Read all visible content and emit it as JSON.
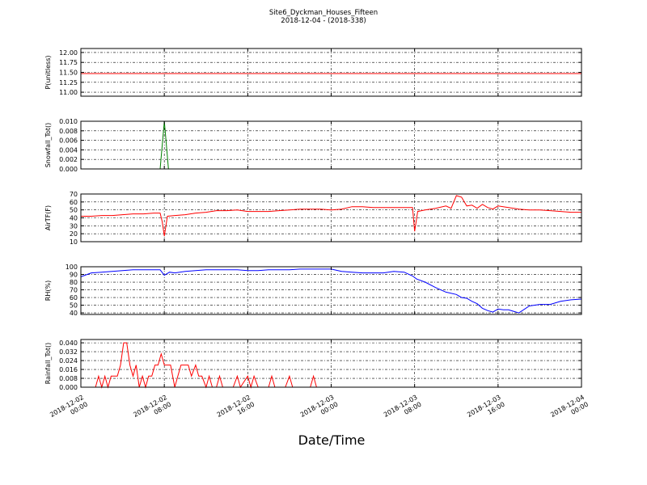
{
  "figure": {
    "title": "Site6_Dyckman_Houses_Fifteen",
    "subtitle": "2018-12-04 - (2018-338)",
    "xlabel": "Date/Time",
    "x_ticks": [
      "2018-12-02\n00:00",
      "2018-12-02\n08:00",
      "2018-12-02\n16:00",
      "2018-12-03\n00:00",
      "2018-12-03\n08:00",
      "2018-12-03\n16:00",
      "2018-12-04\n00:00"
    ]
  },
  "chart_data": [
    {
      "type": "line",
      "ylabel": "P(unitless)",
      "ylim": [
        10.9,
        12.1
      ],
      "yticks": [
        "12.00",
        "11.75",
        "11.50",
        "11.25",
        "11.00"
      ],
      "ytick_values": [
        12.0,
        11.75,
        11.5,
        11.25,
        11.0
      ],
      "color": "#ff0000",
      "grid": true,
      "x_hours": [
        0,
        48
      ],
      "values": [
        11.47,
        11.47
      ]
    },
    {
      "type": "line",
      "ylabel": "Snowfall_Tot()",
      "ylim": [
        0,
        0.01
      ],
      "yticks": [
        "0.010",
        "0.008",
        "0.006",
        "0.004",
        "0.002",
        "0.000"
      ],
      "ytick_values": [
        0.01,
        0.008,
        0.006,
        0.004,
        0.002,
        0.0
      ],
      "color": "#008000",
      "grid": true,
      "x_hours": [
        0,
        7.6,
        8.0,
        8.4,
        48
      ],
      "values": [
        0,
        0,
        0.01,
        0,
        0
      ]
    },
    {
      "type": "line",
      "ylabel": "AirTF(F)",
      "ylim": [
        10,
        70
      ],
      "yticks": [
        "70",
        "60",
        "50",
        "40",
        "30",
        "20",
        "10"
      ],
      "ytick_values": [
        70,
        60,
        50,
        40,
        30,
        20,
        10
      ],
      "color": "#ff0000",
      "grid": true,
      "x_hours": [
        0,
        1,
        2,
        3,
        4,
        5,
        6,
        7,
        7.6,
        7.8,
        8.0,
        8.3,
        9,
        10,
        11,
        12,
        13,
        14,
        15,
        16,
        17,
        18,
        19,
        20,
        21,
        22,
        23,
        24,
        25,
        26,
        27,
        28,
        29,
        30,
        31,
        31.8,
        32.0,
        32.3,
        33,
        34,
        35,
        35.5,
        36,
        36.5,
        37,
        37.5,
        38,
        38.5,
        39,
        39.5,
        40,
        41,
        42,
        43,
        44,
        45,
        46,
        47,
        48
      ],
      "values": [
        42,
        42,
        43,
        43,
        44,
        45,
        45,
        46,
        46,
        35,
        17,
        42,
        43,
        44,
        46,
        47,
        49,
        49,
        50,
        48,
        48,
        48,
        49,
        50,
        51,
        51,
        51,
        50,
        51,
        54,
        54,
        53,
        53,
        53,
        53,
        53,
        23,
        48,
        50,
        52,
        55,
        52,
        68,
        66,
        55,
        56,
        52,
        57,
        53,
        51,
        55,
        53,
        51,
        50,
        50,
        49,
        48,
        47,
        47
      ]
    },
    {
      "type": "line",
      "ylabel": "RH(%)",
      "ylim": [
        38,
        100
      ],
      "yticks": [
        "100",
        "90",
        "80",
        "70",
        "60",
        "50",
        "40"
      ],
      "ytick_values": [
        100,
        90,
        80,
        70,
        60,
        50,
        40
      ],
      "color": "#0000ff",
      "grid": true,
      "x_hours": [
        0,
        1,
        2,
        3,
        4,
        5,
        6,
        7,
        7.6,
        8.0,
        8.5,
        9,
        10,
        11,
        12,
        13,
        14,
        15,
        16,
        17,
        18,
        19,
        20,
        21,
        22,
        23,
        24,
        25,
        26,
        27,
        28,
        29,
        30,
        31,
        31.8,
        32.2,
        33,
        34,
        35,
        36,
        36.5,
        37,
        37.5,
        38,
        38.5,
        39,
        39.5,
        40,
        40.5,
        41,
        42,
        43,
        44,
        45,
        46,
        47,
        48
      ],
      "values": [
        87,
        92,
        93,
        94,
        95,
        96,
        96,
        96,
        96,
        89,
        93,
        92,
        94,
        95,
        96,
        96,
        96,
        96,
        95,
        95,
        96,
        96,
        96,
        97,
        97,
        97,
        97,
        94,
        93,
        92,
        92,
        92,
        94,
        93,
        88,
        84,
        80,
        73,
        67,
        64,
        60,
        59,
        55,
        52,
        46,
        43,
        41,
        45,
        44,
        44,
        40,
        49,
        51,
        51,
        55,
        57,
        58
      ]
    },
    {
      "type": "line",
      "ylabel": "Rainfall_Tot()",
      "ylim": [
        0,
        0.043
      ],
      "yticks": [
        "0.040",
        "0.032",
        "0.024",
        "0.016",
        "0.008",
        "0.000"
      ],
      "ytick_values": [
        0.04,
        0.032,
        0.024,
        0.016,
        0.008,
        0.0
      ],
      "color": "#ff0000",
      "grid": true,
      "x_hours": [
        0,
        1.4,
        1.7,
        2.0,
        2.3,
        2.6,
        2.9,
        3.2,
        3.5,
        3.8,
        4.1,
        4.4,
        4.7,
        5.0,
        5.3,
        5.6,
        5.9,
        6.2,
        6.5,
        6.8,
        7.1,
        7.4,
        7.7,
        8.0,
        8.3,
        8.6,
        9.0,
        9.3,
        9.6,
        10.0,
        10.3,
        10.6,
        11.0,
        11.3,
        11.6,
        12.0,
        12.3,
        12.6,
        13.0,
        13.3,
        13.6,
        14.0,
        14.3,
        14.6,
        15.0,
        15.3,
        16.0,
        16.3,
        16.6,
        17.0,
        17.3,
        17.6,
        18.0,
        18.3,
        18.6,
        19.0,
        19.3,
        19.6,
        20.0,
        20.3,
        20.6,
        21.0,
        21.3,
        21.6,
        22.0,
        22.3,
        22.6,
        48
      ],
      "values": [
        0,
        0,
        0.01,
        0,
        0.01,
        0,
        0.01,
        0.01,
        0.01,
        0.02,
        0.04,
        0.04,
        0.02,
        0.01,
        0.02,
        0,
        0.01,
        0,
        0.01,
        0.01,
        0.02,
        0.02,
        0.03,
        0.02,
        0.02,
        0.02,
        0,
        0.01,
        0.02,
        0.02,
        0.02,
        0.01,
        0.02,
        0.01,
        0.01,
        0,
        0.01,
        0,
        0,
        0.01,
        0,
        0,
        0,
        0,
        0.01,
        0,
        0.01,
        0,
        0.01,
        0,
        0,
        0,
        0,
        0.01,
        0,
        0,
        0,
        0,
        0.01,
        0,
        0,
        0,
        0,
        0,
        0,
        0.01,
        0,
        0
      ]
    }
  ]
}
